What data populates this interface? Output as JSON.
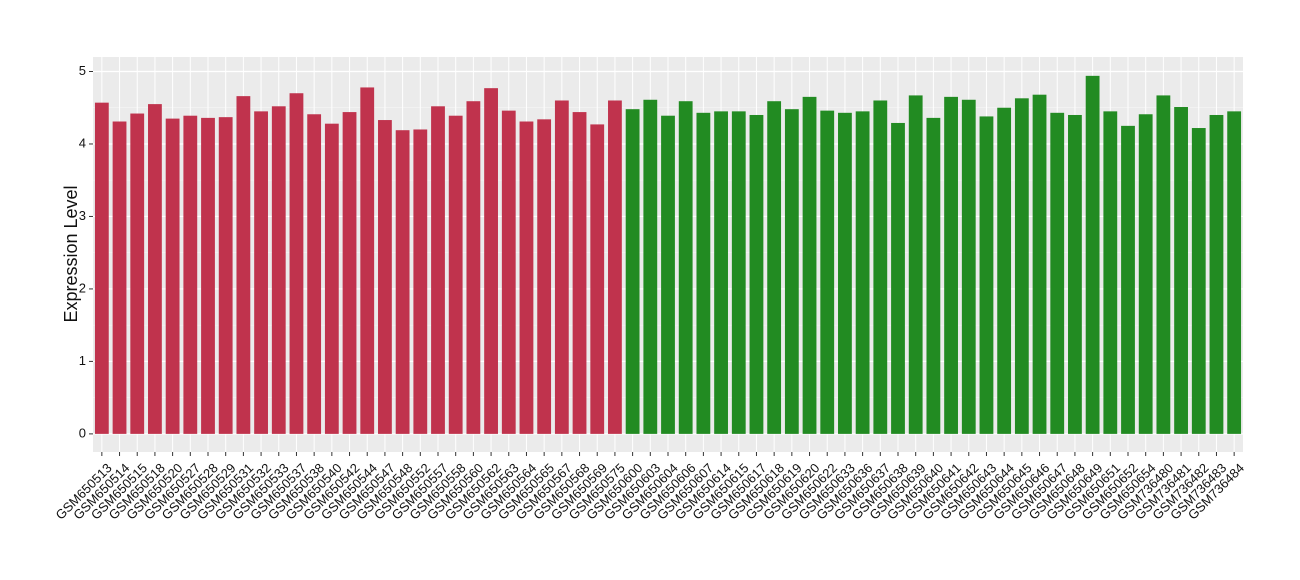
{
  "chart_data": {
    "type": "bar",
    "y_label": "Expression Level",
    "categories": [
      "GSM650513",
      "GSM650514",
      "GSM650515",
      "GSM650518",
      "GSM650520",
      "GSM650527",
      "GSM650528",
      "GSM650529",
      "GSM650531",
      "GSM650532",
      "GSM650533",
      "GSM650537",
      "GSM650538",
      "GSM650540",
      "GSM650542",
      "GSM650544",
      "GSM650547",
      "GSM650548",
      "GSM650552",
      "GSM650557",
      "GSM650558",
      "GSM650560",
      "GSM650562",
      "GSM650563",
      "GSM650564",
      "GSM650565",
      "GSM650567",
      "GSM650568",
      "GSM650569",
      "GSM650575",
      "GSM650600",
      "GSM650603",
      "GSM650604",
      "GSM650606",
      "GSM650607",
      "GSM650614",
      "GSM650615",
      "GSM650617",
      "GSM650618",
      "GSM650619",
      "GSM650620",
      "GSM650622",
      "GSM650633",
      "GSM650636",
      "GSM650637",
      "GSM650638",
      "GSM650639",
      "GSM650640",
      "GSM650641",
      "GSM650642",
      "GSM650643",
      "GSM650644",
      "GSM650645",
      "GSM650646",
      "GSM650647",
      "GSM650648",
      "GSM650649",
      "GSM650651",
      "GSM650652",
      "GSM650654",
      "GSM736480",
      "GSM736481",
      "GSM736482",
      "GSM736483",
      "GSM736484"
    ],
    "values": [
      4.57,
      4.31,
      4.42,
      4.55,
      4.35,
      4.39,
      4.36,
      4.37,
      4.66,
      4.45,
      4.52,
      4.7,
      4.41,
      4.28,
      4.44,
      4.78,
      4.33,
      4.19,
      4.2,
      4.52,
      4.39,
      4.59,
      4.77,
      4.46,
      4.31,
      4.34,
      4.6,
      4.44,
      4.27,
      4.6,
      4.48,
      4.61,
      4.39,
      4.59,
      4.43,
      4.45,
      4.45,
      4.4,
      4.59,
      4.48,
      4.65,
      4.46,
      4.43,
      4.45,
      4.6,
      4.29,
      4.67,
      4.36,
      4.65,
      4.61,
      4.38,
      4.5,
      4.63,
      4.68,
      4.43,
      4.4,
      4.94,
      4.45,
      4.25,
      4.41,
      4.67,
      4.51,
      4.22,
      4.4,
      4.45
    ],
    "colors": [
      "#c0334d",
      "#c0334d",
      "#c0334d",
      "#c0334d",
      "#c0334d",
      "#c0334d",
      "#c0334d",
      "#c0334d",
      "#c0334d",
      "#c0334d",
      "#c0334d",
      "#c0334d",
      "#c0334d",
      "#c0334d",
      "#c0334d",
      "#c0334d",
      "#c0334d",
      "#c0334d",
      "#c0334d",
      "#c0334d",
      "#c0334d",
      "#c0334d",
      "#c0334d",
      "#c0334d",
      "#c0334d",
      "#c0334d",
      "#c0334d",
      "#c0334d",
      "#c0334d",
      "#c0334d",
      "#228b22",
      "#228b22",
      "#228b22",
      "#228b22",
      "#228b22",
      "#228b22",
      "#228b22",
      "#228b22",
      "#228b22",
      "#228b22",
      "#228b22",
      "#228b22",
      "#228b22",
      "#228b22",
      "#228b22",
      "#228b22",
      "#228b22",
      "#228b22",
      "#228b22",
      "#228b22",
      "#228b22",
      "#228b22",
      "#228b22",
      "#228b22",
      "#228b22",
      "#228b22",
      "#228b22",
      "#228b22",
      "#228b22",
      "#228b22",
      "#228b22",
      "#228b22",
      "#228b22",
      "#228b22",
      "#228b22"
    ],
    "ylim": [
      -0.25,
      5.2
    ],
    "yticks": [
      0,
      1,
      2,
      3,
      4,
      5
    ],
    "grid": true
  }
}
